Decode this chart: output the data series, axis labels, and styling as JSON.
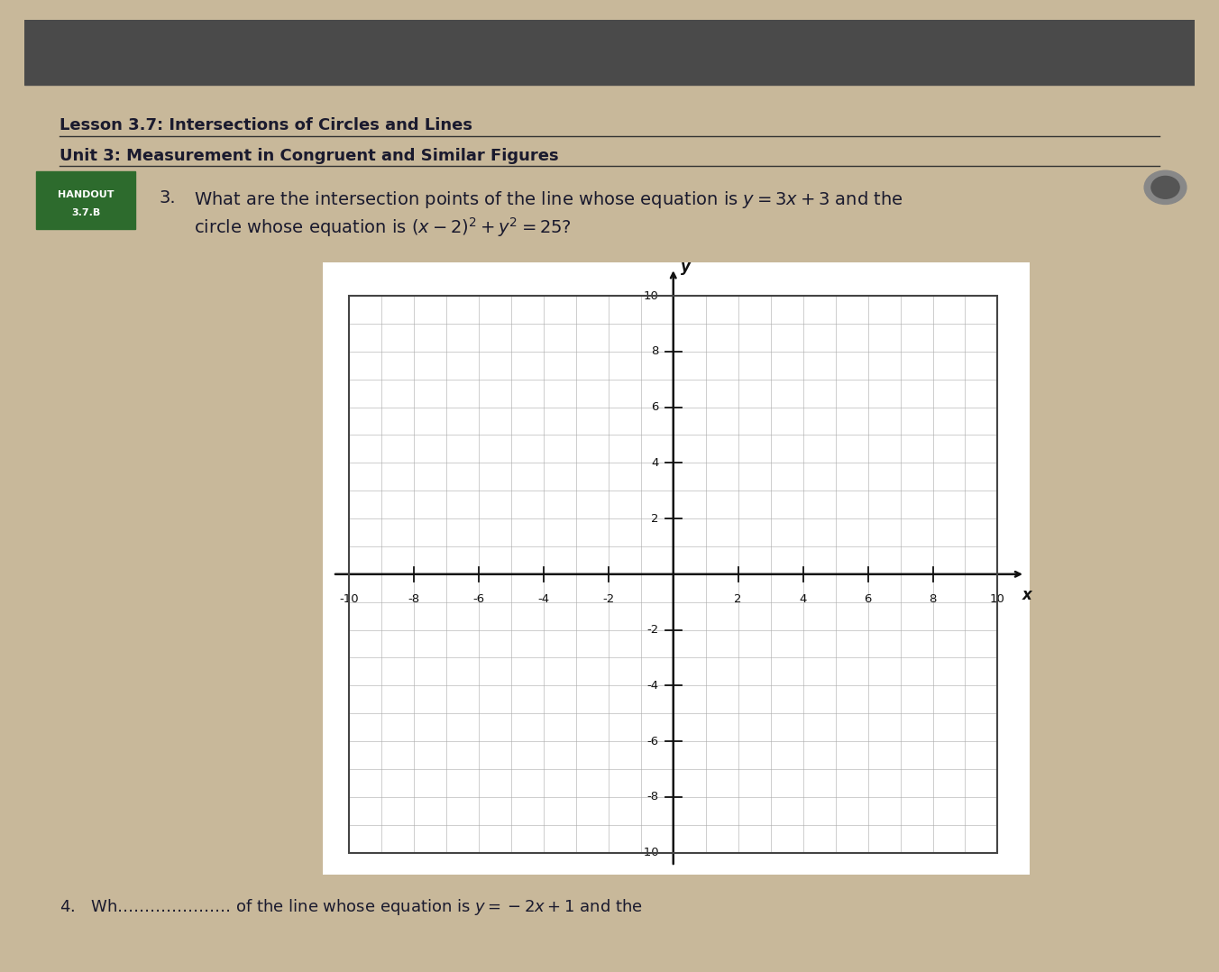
{
  "lesson_title": "Lesson 3.7: Intersections of Circles and Lines",
  "unit_title": "Unit 3: Measurement in Congruent and Similar Figures",
  "handout_bg": "#2d6b2d",
  "question_number": "3.",
  "question_text_line1": "What are the intersection points of the line whose equation is $y=3x+3$ and the",
  "question_text_line2": "circle whose equation is $(x-2)^2+y^2=25$?",
  "bottom_text": "4.   Wh………………… of the line whose equation is $y = -2x+1$ and the",
  "axis_xmin": -10,
  "axis_xmax": 10,
  "axis_ymin": -10,
  "axis_ymax": 10,
  "xticks": [
    -10,
    -8,
    -6,
    -4,
    -2,
    2,
    4,
    6,
    8,
    10
  ],
  "yticks": [
    -10,
    -8,
    -6,
    -4,
    -2,
    2,
    4,
    6,
    8,
    10
  ],
  "grid_color": "#aaaaaa",
  "axis_color": "#111111",
  "title_color": "#1a1a2e",
  "figsize": [
    13.52,
    10.78
  ],
  "dpi": 100
}
